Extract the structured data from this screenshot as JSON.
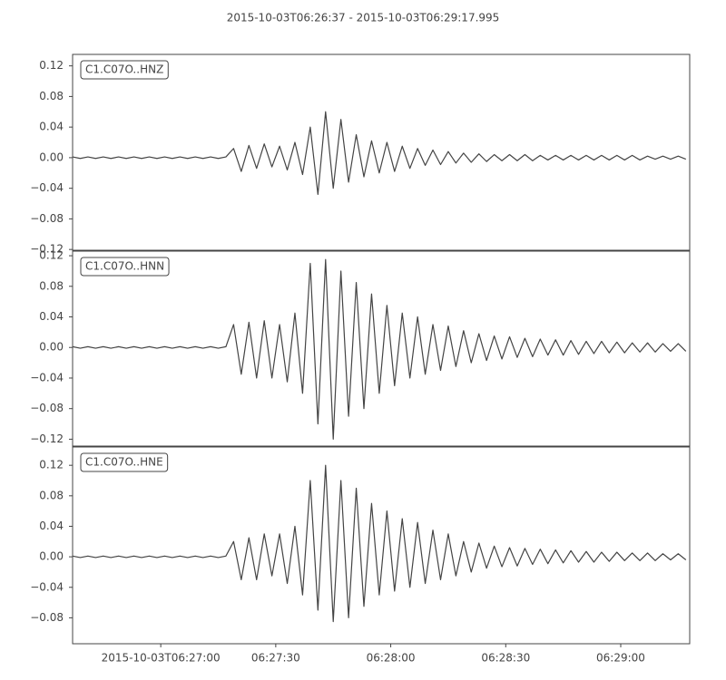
{
  "chart_data": {
    "type": "line",
    "title": "2015-10-03T06:26:37  -  2015-10-03T06:29:17.995",
    "xlim": [
      "2015-10-03T06:26:37",
      "2015-10-03T06:29:17.995"
    ],
    "xticks": [
      {
        "value": "2015-10-03T06:27:00",
        "label": "2015-10-03T06:27:00"
      },
      {
        "value": "2015-10-03T06:27:30",
        "label": "06:27:30"
      },
      {
        "value": "2015-10-03T06:28:00",
        "label": "06:28:00"
      },
      {
        "value": "2015-10-03T06:28:30",
        "label": "06:28:30"
      },
      {
        "value": "2015-10-03T06:29:00",
        "label": "06:29:00"
      }
    ],
    "x": [
      "2015-10-03T06:26:37",
      "2015-10-03T06:26:39",
      "2015-10-03T06:26:41",
      "2015-10-03T06:26:43",
      "2015-10-03T06:26:45",
      "2015-10-03T06:26:47",
      "2015-10-03T06:26:49",
      "2015-10-03T06:26:51",
      "2015-10-03T06:26:53",
      "2015-10-03T06:26:55",
      "2015-10-03T06:26:57",
      "2015-10-03T06:26:59",
      "2015-10-03T06:27:01",
      "2015-10-03T06:27:03",
      "2015-10-03T06:27:05",
      "2015-10-03T06:27:07",
      "2015-10-03T06:27:09",
      "2015-10-03T06:27:11",
      "2015-10-03T06:27:13",
      "2015-10-03T06:27:15",
      "2015-10-03T06:27:17",
      "2015-10-03T06:27:19",
      "2015-10-03T06:27:21",
      "2015-10-03T06:27:23",
      "2015-10-03T06:27:25",
      "2015-10-03T06:27:27",
      "2015-10-03T06:27:29",
      "2015-10-03T06:27:31",
      "2015-10-03T06:27:33",
      "2015-10-03T06:27:35",
      "2015-10-03T06:27:37",
      "2015-10-03T06:27:39",
      "2015-10-03T06:27:41",
      "2015-10-03T06:27:43",
      "2015-10-03T06:27:45",
      "2015-10-03T06:27:47",
      "2015-10-03T06:27:49",
      "2015-10-03T06:27:51",
      "2015-10-03T06:27:53",
      "2015-10-03T06:27:55",
      "2015-10-03T06:27:57",
      "2015-10-03T06:27:59",
      "2015-10-03T06:28:01",
      "2015-10-03T06:28:03",
      "2015-10-03T06:28:05",
      "2015-10-03T06:28:07",
      "2015-10-03T06:28:09",
      "2015-10-03T06:28:11",
      "2015-10-03T06:28:13",
      "2015-10-03T06:28:15",
      "2015-10-03T06:28:17",
      "2015-10-03T06:28:19",
      "2015-10-03T06:28:21",
      "2015-10-03T06:28:23",
      "2015-10-03T06:28:25",
      "2015-10-03T06:28:27",
      "2015-10-03T06:28:29",
      "2015-10-03T06:28:31",
      "2015-10-03T06:28:33",
      "2015-10-03T06:28:35",
      "2015-10-03T06:28:37",
      "2015-10-03T06:28:39",
      "2015-10-03T06:28:41",
      "2015-10-03T06:28:43",
      "2015-10-03T06:28:45",
      "2015-10-03T06:28:47",
      "2015-10-03T06:28:49",
      "2015-10-03T06:28:51",
      "2015-10-03T06:28:53",
      "2015-10-03T06:28:55",
      "2015-10-03T06:28:57",
      "2015-10-03T06:28:59",
      "2015-10-03T06:29:01",
      "2015-10-03T06:29:03",
      "2015-10-03T06:29:05",
      "2015-10-03T06:29:07",
      "2015-10-03T06:29:09",
      "2015-10-03T06:29:11",
      "2015-10-03T06:29:13",
      "2015-10-03T06:29:15",
      "2015-10-03T06:29:17"
    ],
    "panels": [
      {
        "name": "C1.C07O..HNZ",
        "color": "#444444",
        "ylim": [
          -0.121,
          0.135
        ],
        "yticks": [
          {
            "value": -0.12,
            "label": "−0.12"
          },
          {
            "value": -0.08,
            "label": "−0.08"
          },
          {
            "value": -0.04,
            "label": "−0.04"
          },
          {
            "value": 0,
            "label": "0.00"
          },
          0.04,
          0.08,
          0.12
        ],
        "values": [
          0.001,
          -0.001,
          0.001,
          -0.001,
          0.001,
          -0.001,
          0.001,
          -0.001,
          0.001,
          -0.001,
          0.001,
          -0.001,
          0.001,
          -0.001,
          0.001,
          -0.001,
          0.001,
          -0.001,
          0.001,
          -0.001,
          0.001,
          0.012,
          -0.018,
          0.016,
          -0.014,
          0.018,
          -0.012,
          0.015,
          -0.016,
          0.02,
          -0.022,
          0.04,
          -0.048,
          0.06,
          -0.04,
          0.05,
          -0.032,
          0.03,
          -0.025,
          0.022,
          -0.02,
          0.02,
          -0.018,
          0.015,
          -0.014,
          0.012,
          -0.01,
          0.01,
          -0.009,
          0.008,
          -0.007,
          0.006,
          -0.006,
          0.005,
          -0.005,
          0.004,
          -0.004,
          0.004,
          -0.004,
          0.004,
          -0.004,
          0.003,
          -0.003,
          0.003,
          -0.003,
          0.003,
          -0.003,
          0.003,
          -0.003,
          0.003,
          -0.003,
          0.003,
          -0.003,
          0.003,
          -0.003,
          0.002,
          -0.002,
          0.002,
          -0.002,
          0.002,
          -0.002
        ]
      },
      {
        "name": "C1.C07O..HNN",
        "color": "#444444",
        "ylim": [
          -0.129,
          0.126
        ],
        "yticks": [
          {
            "value": -0.12,
            "label": "−0.12"
          },
          {
            "value": -0.08,
            "label": "−0.08"
          },
          {
            "value": -0.04,
            "label": "−0.04"
          },
          {
            "value": 0,
            "label": "0.00"
          },
          0.04,
          0.08,
          0.12
        ],
        "values": [
          0.001,
          -0.001,
          0.001,
          -0.001,
          0.001,
          -0.001,
          0.001,
          -0.001,
          0.001,
          -0.001,
          0.001,
          -0.001,
          0.001,
          -0.001,
          0.001,
          -0.001,
          0.001,
          -0.001,
          0.001,
          -0.001,
          0.001,
          0.03,
          -0.035,
          0.033,
          -0.04,
          0.035,
          -0.04,
          0.03,
          -0.045,
          0.045,
          -0.06,
          0.11,
          -0.1,
          0.115,
          -0.12,
          0.1,
          -0.09,
          0.085,
          -0.08,
          0.07,
          -0.06,
          0.055,
          -0.05,
          0.045,
          -0.04,
          0.04,
          -0.035,
          0.03,
          -0.03,
          0.028,
          -0.025,
          0.022,
          -0.02,
          0.018,
          -0.017,
          0.015,
          -0.015,
          0.014,
          -0.013,
          0.012,
          -0.012,
          0.011,
          -0.01,
          0.01,
          -0.01,
          0.009,
          -0.009,
          0.008,
          -0.008,
          0.008,
          -0.007,
          0.007,
          -0.007,
          0.006,
          -0.006,
          0.006,
          -0.006,
          0.005,
          -0.005,
          0.005,
          -0.005
        ]
      },
      {
        "name": "C1.C07O..HNE",
        "color": "#444444",
        "ylim": [
          -0.114,
          0.144
        ],
        "yticks": [
          {
            "value": -0.08,
            "label": "−0.08"
          },
          {
            "value": -0.04,
            "label": "−0.04"
          },
          {
            "value": 0,
            "label": "0.00"
          },
          0.04,
          0.08,
          0.12
        ],
        "values": [
          0.001,
          -0.001,
          0.001,
          -0.001,
          0.001,
          -0.001,
          0.001,
          -0.001,
          0.001,
          -0.001,
          0.001,
          -0.001,
          0.001,
          -0.001,
          0.001,
          -0.001,
          0.001,
          -0.001,
          0.001,
          -0.001,
          0.001,
          0.02,
          -0.03,
          0.025,
          -0.03,
          0.03,
          -0.025,
          0.03,
          -0.035,
          0.04,
          -0.05,
          0.1,
          -0.07,
          0.12,
          -0.085,
          0.1,
          -0.08,
          0.09,
          -0.065,
          0.07,
          -0.05,
          0.06,
          -0.045,
          0.05,
          -0.04,
          0.045,
          -0.035,
          0.035,
          -0.03,
          0.03,
          -0.025,
          0.02,
          -0.02,
          0.018,
          -0.015,
          0.014,
          -0.013,
          0.012,
          -0.012,
          0.011,
          -0.01,
          0.01,
          -0.009,
          0.009,
          -0.008,
          0.008,
          -0.007,
          0.007,
          -0.007,
          0.006,
          -0.006,
          0.006,
          -0.005,
          0.005,
          -0.005,
          0.005,
          -0.005,
          0.004,
          -0.004,
          0.004,
          -0.004
        ]
      }
    ]
  }
}
